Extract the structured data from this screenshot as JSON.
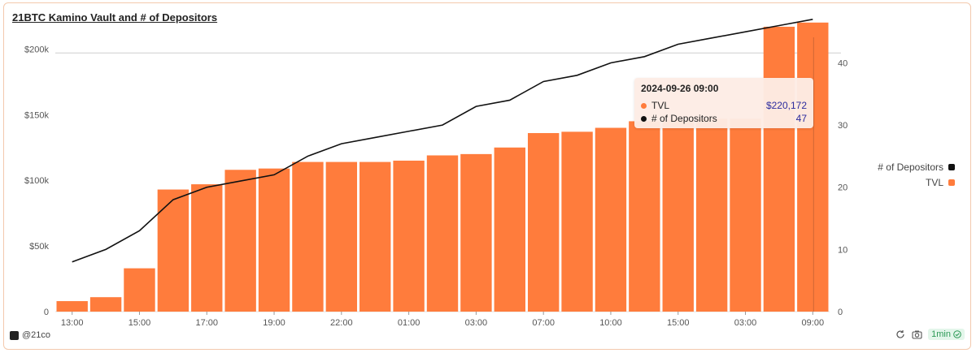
{
  "header": {
    "title": "21BTC Kamino Vault and # of Depositors"
  },
  "chart_data": {
    "type": "bar",
    "x_ticks": [
      "13:00",
      "15:00",
      "17:00",
      "19:00",
      "22:00",
      "01:00",
      "03:00",
      "07:00",
      "10:00",
      "15:00",
      "03:00",
      "09:00"
    ],
    "y_left_ticks": [
      "0",
      "$50k",
      "$100k",
      "$150k",
      "$200k"
    ],
    "y_left_range": [
      0,
      225000
    ],
    "y_right_ticks": [
      "0",
      "10",
      "20",
      "30",
      "40"
    ],
    "y_right_range": [
      0,
      47.5
    ],
    "series": [
      {
        "name": "TVL",
        "type": "bar",
        "axis": "left",
        "color": "#ff7c3c",
        "values": [
          8000,
          11000,
          33000,
          93000,
          97000,
          108000,
          109000,
          114000,
          114000,
          114000,
          115000,
          119000,
          120000,
          125000,
          136000,
          137000,
          140000,
          145000,
          146000,
          147000,
          147000,
          217000,
          220172
        ]
      },
      {
        "name": "# of Depositors",
        "type": "line",
        "axis": "right",
        "color": "#111111",
        "values": [
          8,
          10,
          13,
          18,
          20,
          21,
          22,
          25,
          27,
          28,
          29,
          30,
          33,
          34,
          37,
          38,
          40,
          41,
          43,
          44,
          45,
          46,
          47
        ]
      }
    ],
    "legend_position": "right",
    "legend": [
      "# of Depositors",
      "TVL"
    ],
    "grid": {
      "horizontal_line_at": 197000
    }
  },
  "tooltip": {
    "title": "2024-09-26 09:00",
    "rows": [
      {
        "label": "TVL",
        "value": "$220,172",
        "color": "#ff7c3c"
      },
      {
        "label": "# of Depositors",
        "value": "47",
        "color": "#111111"
      }
    ]
  },
  "footer": {
    "author": "@21co",
    "badge": "1min",
    "icons": [
      "refresh-icon",
      "camera-icon",
      "check-circle-icon"
    ]
  }
}
